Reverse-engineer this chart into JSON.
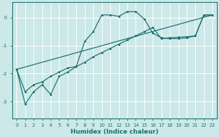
{
  "xlabel": "Humidex (Indice chaleur)",
  "bg_color": "#cce8e8",
  "grid_color": "#ffffff",
  "line_color": "#1a7070",
  "xlim": [
    -0.5,
    23.5
  ],
  "ylim": [
    -3.6,
    0.55
  ],
  "yticks": [
    0,
    -1,
    -2,
    -3
  ],
  "xticks": [
    0,
    1,
    2,
    3,
    4,
    5,
    6,
    7,
    8,
    9,
    10,
    11,
    12,
    13,
    14,
    15,
    16,
    17,
    18,
    19,
    20,
    21,
    22,
    23
  ],
  "curve1_x": [
    0,
    1,
    2,
    3,
    4,
    5,
    6,
    7,
    8,
    9,
    10,
    11,
    12,
    13,
    14,
    15,
    16,
    17,
    18,
    19,
    20,
    21,
    22,
    23
  ],
  "curve1_y": [
    -1.85,
    -3.1,
    -2.65,
    -2.4,
    -2.75,
    -2.1,
    -1.95,
    -1.75,
    -0.85,
    -0.5,
    0.1,
    0.1,
    0.05,
    0.22,
    0.22,
    -0.05,
    -0.55,
    -0.72,
    -0.75,
    -0.75,
    -0.72,
    -0.65,
    0.1,
    0.1
  ],
  "curve2_x": [
    0,
    1,
    2,
    3,
    4,
    5,
    6,
    7,
    8,
    9,
    10,
    11,
    12,
    13,
    14,
    15,
    16,
    17,
    18,
    19,
    20,
    21,
    22,
    23
  ],
  "curve2_y": [
    -1.85,
    -2.65,
    -2.4,
    -2.3,
    -2.1,
    -1.95,
    -1.8,
    -1.75,
    -1.6,
    -1.4,
    -1.25,
    -1.1,
    -0.95,
    -0.8,
    -0.65,
    -0.5,
    -0.35,
    -0.75,
    -0.72,
    -0.7,
    -0.68,
    -0.65,
    0.1,
    0.1
  ],
  "curve3_x": [
    0,
    23
  ],
  "curve3_y": [
    -1.85,
    0.1
  ]
}
